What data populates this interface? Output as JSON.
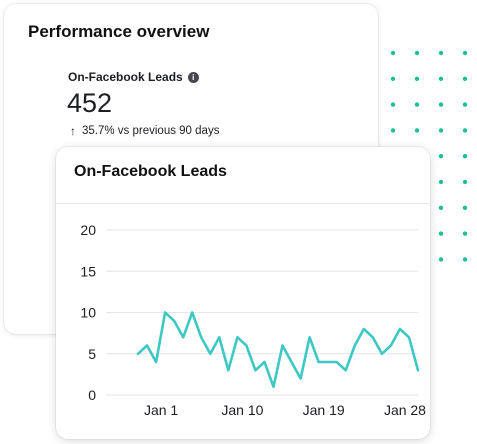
{
  "back_card": {
    "title": "Performance overview",
    "metric_label": "On-Facebook Leads",
    "metric_value": "452",
    "change_text": "35.7% vs previous 90 days"
  },
  "colors": {
    "line": "#3ec8c4",
    "dots": "#1ebf98",
    "grid": "#e4e6eb",
    "text": "#1c1e21"
  },
  "icons": {
    "info": "info-icon",
    "arrow": "arrow-up-icon"
  },
  "chart_data": {
    "type": "line",
    "title": "On-Facebook Leads",
    "xlabel": "",
    "ylabel": "",
    "ylim": [
      0,
      20
    ],
    "yticks": [
      "0",
      "5",
      "10",
      "15",
      "20"
    ],
    "xticks": [
      {
        "label": "Jan 1",
        "index": 3
      },
      {
        "label": "Jan 10",
        "index": 12
      },
      {
        "label": "Jan 19",
        "index": 21
      },
      {
        "label": "Jan 28",
        "index": 30
      }
    ],
    "grid": true,
    "series": [
      {
        "values": [
          5,
          6,
          4,
          10,
          9,
          7,
          10,
          7,
          5,
          7,
          3,
          7,
          6,
          3,
          4,
          1,
          6,
          4,
          2,
          7,
          4,
          4,
          4,
          3,
          6,
          8,
          7,
          5,
          6,
          8,
          7,
          3
        ]
      }
    ]
  }
}
